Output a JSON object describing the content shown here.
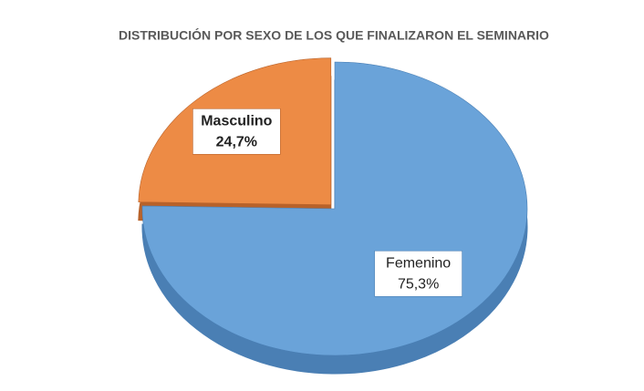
{
  "chart_data": {
    "type": "pie",
    "title": "DISTRIBUCIÓN POR SEXO DE LOS QUE FINALIZARON EL SEMINARIO",
    "categories": [
      "Masculino",
      "Femenino"
    ],
    "values": [
      24.7,
      75.3
    ],
    "value_labels": [
      "24,7%",
      "75,3%"
    ],
    "colors": [
      "#ed8b45",
      "#6aa3d9"
    ],
    "side_colors": [
      "#b8622a",
      "#4a7fb4"
    ],
    "style": "3d"
  }
}
